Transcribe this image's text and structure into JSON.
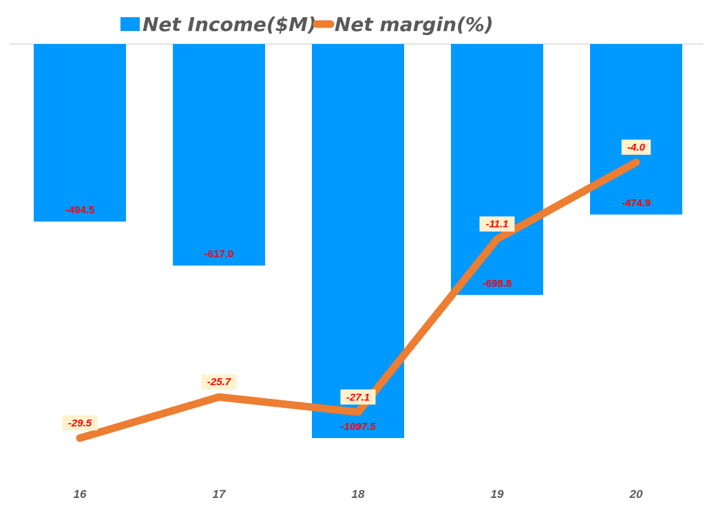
{
  "chart_data": {
    "type": "bar",
    "title": "",
    "xlabel": "",
    "ylabel": "",
    "categories": [
      "16",
      "17",
      "18",
      "19",
      "20"
    ],
    "series": [
      {
        "name": "Net Income($M)",
        "type": "bar",
        "color": "#0099ff",
        "values": [
          -494.5,
          -617.0,
          -1097.5,
          -698.8,
          -474.9
        ],
        "labels": [
          "-494.5",
          "-617.0",
          "-1097.5",
          "-698.8",
          "-474.9"
        ]
      },
      {
        "name": "Net margin(%)",
        "type": "line",
        "color": "#ed7d31",
        "values": [
          -29.5,
          -25.7,
          -27.1,
          -11.1,
          -4.0
        ],
        "labels": [
          "-29.5",
          "-25.7",
          "-27.1",
          "-11.1",
          "-4.0"
        ]
      }
    ],
    "legend": {
      "position": "top",
      "items": [
        "Net Income($M)",
        "Net margin(%)"
      ]
    },
    "grid": false,
    "ylim_bar": [
      -1100,
      0
    ],
    "ylim_line": [
      -30,
      0
    ]
  },
  "legend": {
    "bar_label": "Net Income($M)",
    "line_label": "Net margin(%)"
  },
  "colors": {
    "bar": "#0099ff",
    "line": "#ed7d31",
    "label_text": "#ff0000",
    "label_box": "#fff2cc",
    "axis_text": "#595959",
    "axis_line": "#d9d9d9"
  }
}
